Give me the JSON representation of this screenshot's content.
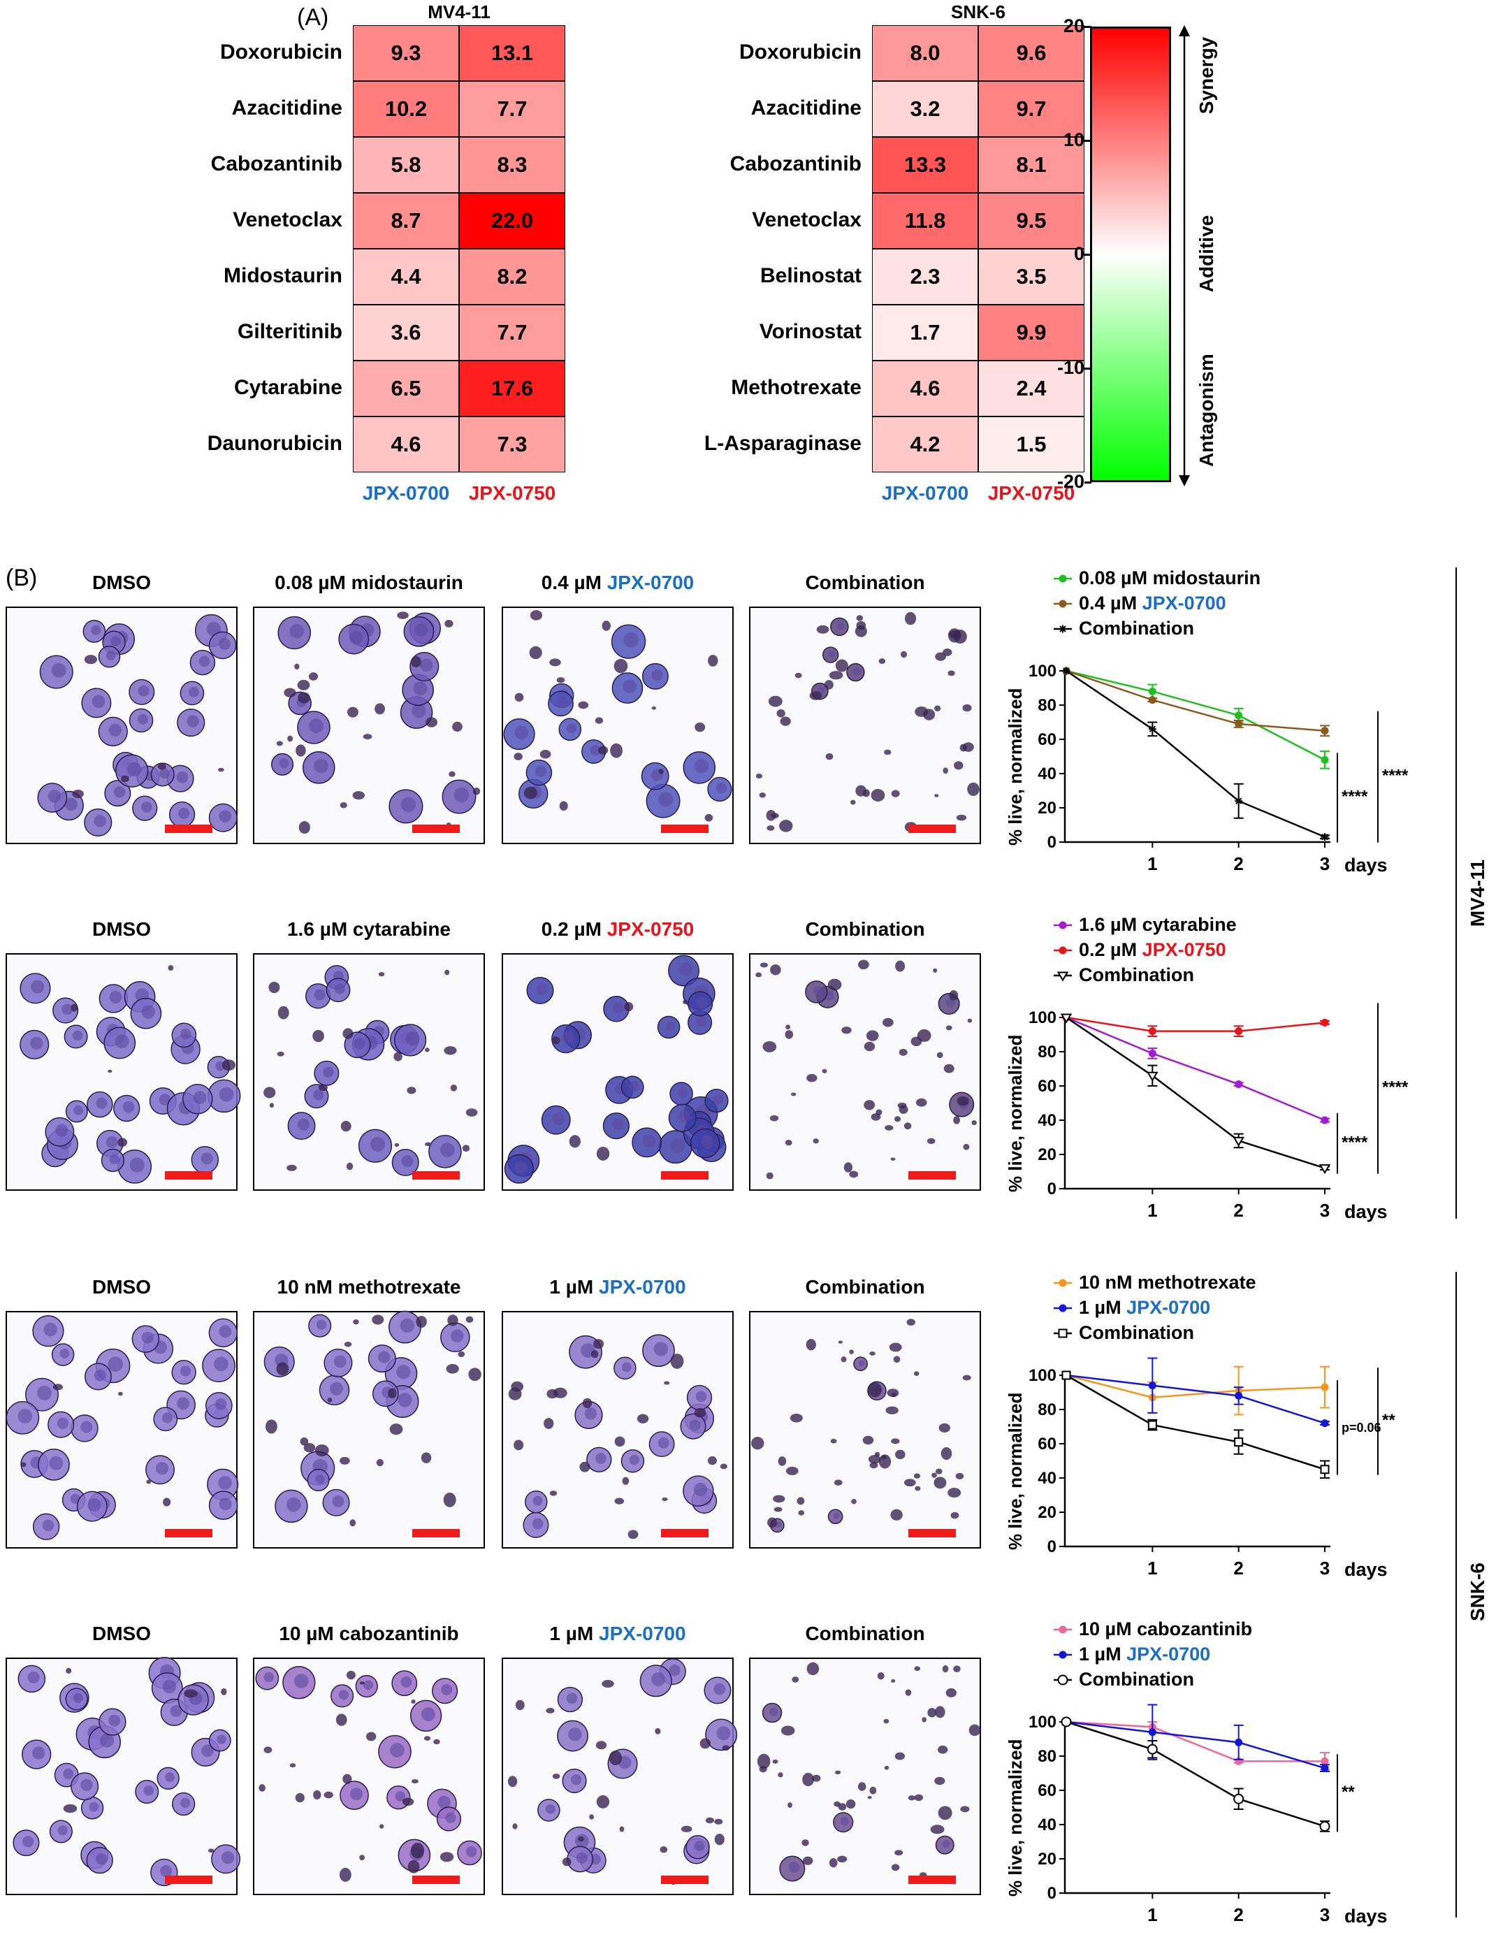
{
  "panel_a": {
    "label": "(A)",
    "heatmaps": [
      {
        "title": "MV4-11",
        "drugs": [
          "Doxorubicin",
          "Azacitidine",
          "Cabozantinib",
          "Venetoclax",
          "Midostaurin",
          "Gilteritinib",
          "Cytarabine",
          "Daunorubicin"
        ],
        "columns": [
          {
            "label": "JPX-0700",
            "color": "#1a6fc4"
          },
          {
            "label": "JPX-0750",
            "color": "#e8141b"
          }
        ],
        "values": [
          [
            9.3,
            13.1
          ],
          [
            10.2,
            7.7
          ],
          [
            5.8,
            8.3
          ],
          [
            8.7,
            22.0
          ],
          [
            4.4,
            8.2
          ],
          [
            3.6,
            7.7
          ],
          [
            6.5,
            17.6
          ],
          [
            4.6,
            7.3
          ]
        ],
        "labels": [
          [
            "9.3",
            "13.1"
          ],
          [
            "10.2",
            "7.7"
          ],
          [
            "5.8",
            "8.3"
          ],
          [
            "8.7",
            "22.0"
          ],
          [
            "4.4",
            "8.2"
          ],
          [
            "3.6",
            "7.7"
          ],
          [
            "6.5",
            "17.6"
          ],
          [
            "4.6",
            "7.3"
          ]
        ]
      },
      {
        "title": "SNK-6",
        "drugs": [
          "Doxorubicin",
          "Azacitidine",
          "Cabozantinib",
          "Venetoclax",
          "Belinostat",
          "Vorinostat",
          "Methotrexate",
          "L-Asparaginase"
        ],
        "columns": [
          {
            "label": "JPX-0700",
            "color": "#1a6fc4"
          },
          {
            "label": "JPX-0750",
            "color": "#e8141b"
          }
        ],
        "values": [
          [
            8.0,
            9.6
          ],
          [
            3.2,
            9.7
          ],
          [
            13.3,
            8.1
          ],
          [
            11.8,
            9.5
          ],
          [
            2.3,
            3.5
          ],
          [
            1.7,
            9.9
          ],
          [
            4.6,
            2.4
          ],
          [
            4.2,
            1.5
          ]
        ],
        "labels": [
          [
            "8.0",
            "9.6"
          ],
          [
            "3.2",
            "9.7"
          ],
          [
            "13.3",
            "8.1"
          ],
          [
            "11.8",
            "9.5"
          ],
          [
            "2.3",
            "3.5"
          ],
          [
            "1.7",
            "9.9"
          ],
          [
            "4.6",
            "2.4"
          ],
          [
            "4.2",
            "1.5"
          ]
        ]
      }
    ],
    "colorbar": {
      "ticks": [
        "20",
        "10",
        "0",
        "-10",
        "-20"
      ],
      "tick_values": [
        20,
        10,
        0,
        -10,
        -20
      ],
      "range": [
        -20,
        20
      ],
      "colors": {
        "max": "#ff0000",
        "mid": "#ffffff",
        "min": "#00ff00"
      },
      "zones": [
        "Synergy",
        "Additive",
        "Antagonism"
      ]
    }
  },
  "panel_b": {
    "label": "(B)",
    "rows": [
      {
        "panels": [
          {
            "parts": [
              {
                "text": "DMSO",
                "color": ""
              }
            ],
            "cell_color": "#7b6ac2",
            "density": "healthy"
          },
          {
            "parts": [
              {
                "text": "0.08 µM midostaurin",
                "color": ""
              }
            ],
            "cell_color": "#6e5ab8",
            "density": "mixed"
          },
          {
            "parts": [
              {
                "text": "0.4 µM ",
                "color": ""
              },
              {
                "text": "JPX-0700",
                "color": "#1a6fc4"
              }
            ],
            "cell_color": "#4f54b8",
            "density": "mixed"
          },
          {
            "parts": [
              {
                "text": "Combination",
                "color": ""
              }
            ],
            "cell_color": "#5a3f7a",
            "density": "debris"
          }
        ]
      },
      {
        "panels": [
          {
            "parts": [
              {
                "text": "DMSO",
                "color": ""
              }
            ],
            "cell_color": "#7a6cc8",
            "density": "healthy"
          },
          {
            "parts": [
              {
                "text": "1.6 µM cytarabine",
                "color": ""
              }
            ],
            "cell_color": "#6d5fbf",
            "density": "mixed"
          },
          {
            "parts": [
              {
                "text": "0.2 µM ",
                "color": ""
              },
              {
                "text": "JPX-0750",
                "color": "#e8141b"
              }
            ],
            "cell_color": "#3d3fa8",
            "density": "healthy"
          },
          {
            "parts": [
              {
                "text": "Combination",
                "color": ""
              }
            ],
            "cell_color": "#5e4580",
            "density": "debris"
          }
        ]
      },
      {
        "panels": [
          {
            "parts": [
              {
                "text": "DMSO",
                "color": ""
              }
            ],
            "cell_color": "#8a74cc",
            "density": "healthy"
          },
          {
            "parts": [
              {
                "text": "10 nM methotrexate",
                "color": ""
              }
            ],
            "cell_color": "#8470c8",
            "density": "mixed"
          },
          {
            "parts": [
              {
                "text": "1 µM ",
                "color": ""
              },
              {
                "text": "JPX-0700",
                "color": "#1a6fc4"
              }
            ],
            "cell_color": "#8a72c8",
            "density": "mixed"
          },
          {
            "parts": [
              {
                "text": "Combination",
                "color": ""
              }
            ],
            "cell_color": "#6c4f8e",
            "density": "debris"
          }
        ]
      },
      {
        "panels": [
          {
            "parts": [
              {
                "text": "DMSO",
                "color": ""
              }
            ],
            "cell_color": "#8a72cc",
            "density": "healthy"
          },
          {
            "parts": [
              {
                "text": "10 µM cabozantinib",
                "color": ""
              }
            ],
            "cell_color": "#9a6cc4",
            "density": "mixed"
          },
          {
            "parts": [
              {
                "text": "1 µM ",
                "color": ""
              },
              {
                "text": "JPX-0700",
                "color": "#1a6fc4"
              }
            ],
            "cell_color": "#8a72c8",
            "density": "mixed"
          },
          {
            "parts": [
              {
                "text": "Combination",
                "color": ""
              }
            ],
            "cell_color": "#6c5090",
            "density": "debris"
          }
        ]
      }
    ],
    "side_labels": [
      "MV4-11",
      "SNK-6"
    ]
  },
  "chart_data": [
    {
      "type": "line",
      "xlabel": "days",
      "ylabel": "% live, normalized",
      "x": [
        0,
        1,
        2,
        3
      ],
      "x_tick_labels": [
        "1",
        "2",
        "3"
      ],
      "y_ticks": [
        0,
        20,
        40,
        60,
        80,
        100
      ],
      "ylim": [
        0,
        100
      ],
      "series": [
        {
          "name": "0.08 µM midostaurin",
          "color": "#1fbf1f",
          "marker": "filled-circle",
          "values": [
            100,
            88,
            74,
            48
          ],
          "err": [
            0,
            4,
            4,
            5
          ]
        },
        {
          "name": "0.4 µM JPX-0700",
          "name_parts": [
            "0.4 µM ",
            "JPX-0700"
          ],
          "color": "#8b5a1e",
          "marker": "filled-circle",
          "values": [
            100,
            83,
            69,
            65
          ],
          "err": [
            0,
            1,
            2,
            3
          ]
        },
        {
          "name": "Combination",
          "color": "#000000",
          "marker": "star",
          "values": [
            100,
            66,
            24,
            3
          ],
          "err": [
            0,
            4,
            10,
            1
          ]
        }
      ],
      "significance": [
        {
          "text": "****"
        },
        {
          "text": "****"
        }
      ]
    },
    {
      "type": "line",
      "xlabel": "days",
      "ylabel": "% live, normalized",
      "x": [
        0,
        1,
        2,
        3
      ],
      "x_tick_labels": [
        "1",
        "2",
        "3"
      ],
      "y_ticks": [
        0,
        20,
        40,
        60,
        80,
        100
      ],
      "ylim": [
        0,
        100
      ],
      "series": [
        {
          "name": "1.6 µM cytarabine",
          "color": "#a21cd6",
          "marker": "filled-circle",
          "values": [
            100,
            79,
            61,
            40
          ],
          "err": [
            0,
            3,
            1,
            1
          ]
        },
        {
          "name": "0.2 µM JPX-0750",
          "name_parts": [
            "0.2 µM ",
            "JPX-0750"
          ],
          "color": "#e8141b",
          "marker": "filled-circle",
          "values": [
            100,
            92,
            92,
            97
          ],
          "err": [
            0,
            3,
            3,
            1
          ]
        },
        {
          "name": "Combination",
          "color": "#000000",
          "marker": "open-triangle-down",
          "values": [
            100,
            66,
            28,
            12
          ],
          "err": [
            0,
            6,
            4,
            1
          ]
        }
      ],
      "significance": [
        {
          "text": "****"
        },
        {
          "text": "****"
        }
      ]
    },
    {
      "type": "line",
      "xlabel": "days",
      "ylabel": "% live, normalized",
      "x": [
        0,
        1,
        2,
        3
      ],
      "x_tick_labels": [
        "1",
        "2",
        "3"
      ],
      "y_ticks": [
        0,
        20,
        40,
        60,
        80,
        100
      ],
      "ylim": [
        0,
        100
      ],
      "series": [
        {
          "name": "10 nM methotrexate",
          "color": "#f7941d",
          "marker": "filled-circle",
          "values": [
            100,
            87,
            91,
            93
          ],
          "err": [
            0,
            9,
            14,
            12
          ]
        },
        {
          "name": "1 µM JPX-0700",
          "name_parts": [
            "1 µM ",
            "JPX-0700"
          ],
          "color": "#1416d6",
          "marker": "filled-circle",
          "values": [
            100,
            94,
            88,
            72
          ],
          "err": [
            0,
            16,
            5,
            1
          ]
        },
        {
          "name": "Combination",
          "color": "#000000",
          "marker": "open-square",
          "values": [
            100,
            71,
            61,
            45
          ],
          "err": [
            0,
            3,
            7,
            5
          ]
        }
      ],
      "significance": [
        {
          "text": "p=0.06"
        },
        {
          "text": "**"
        }
      ]
    },
    {
      "type": "line",
      "xlabel": "days",
      "ylabel": "% live, normalized",
      "x": [
        0,
        1,
        2,
        3
      ],
      "x_tick_labels": [
        "1",
        "2",
        "3"
      ],
      "y_ticks": [
        0,
        20,
        40,
        60,
        80,
        100
      ],
      "ylim": [
        0,
        100
      ],
      "series": [
        {
          "name": "10 µM cabozantinib",
          "color": "#f06699",
          "marker": "filled-circle",
          "values": [
            100,
            97,
            77,
            77
          ],
          "err": [
            0,
            3,
            1,
            5
          ]
        },
        {
          "name": "1 µM JPX-0700",
          "name_parts": [
            "1 µM ",
            "JPX-0700"
          ],
          "color": "#1416d6",
          "marker": "filled-circle",
          "values": [
            100,
            94,
            88,
            73
          ],
          "err": [
            0,
            16,
            10,
            2
          ]
        },
        {
          "name": "Combination",
          "color": "#000000",
          "marker": "open-circle",
          "values": [
            100,
            84,
            55,
            39
          ],
          "err": [
            0,
            5,
            6,
            3
          ]
        }
      ],
      "significance": [
        {
          "text": "**"
        }
      ]
    }
  ]
}
